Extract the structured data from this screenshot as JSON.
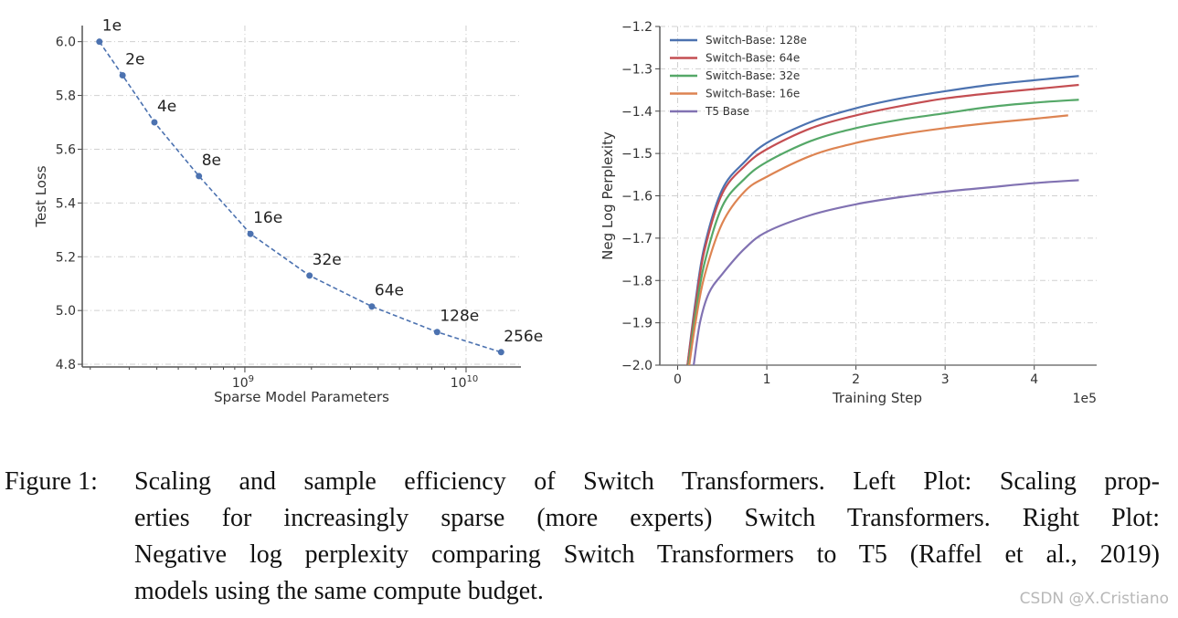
{
  "chart_data": [
    {
      "type": "line",
      "xlabel": "Sparse Model Parameters",
      "ylabel": "Test Loss",
      "xscale": "log",
      "xlim": [
        184000000.0,
        17700000000.0
      ],
      "ylim": [
        4.79,
        6.06
      ],
      "xticks": [
        {
          "value": 1000000000.0,
          "base": "10",
          "exp": "9"
        },
        {
          "value": 10000000000.0,
          "base": "10",
          "exp": "10"
        }
      ],
      "yticks": [
        4.8,
        5.0,
        5.2,
        5.4,
        5.6,
        5.8,
        6.0
      ],
      "ytick_labels": [
        "4.8",
        "5.0",
        "5.2",
        "5.4",
        "5.6",
        "5.8",
        "6.0"
      ],
      "grid": true,
      "line_style": "dashed",
      "color": "#4c72b0",
      "points": [
        {
          "label": "1e",
          "x": 220000000.0,
          "y": 6.0
        },
        {
          "label": "2e",
          "x": 280000000.0,
          "y": 5.875
        },
        {
          "label": "4e",
          "x": 390000000.0,
          "y": 5.7
        },
        {
          "label": "8e",
          "x": 620000000.0,
          "y": 5.5
        },
        {
          "label": "16e",
          "x": 1060000000.0,
          "y": 5.285
        },
        {
          "label": "32e",
          "x": 1960000000.0,
          "y": 5.13
        },
        {
          "label": "64e",
          "x": 3750000000.0,
          "y": 5.015
        },
        {
          "label": "128e",
          "x": 7400000000.0,
          "y": 4.92
        },
        {
          "label": "256e",
          "x": 14400000000.0,
          "y": 4.845
        }
      ]
    },
    {
      "type": "line",
      "xlabel": "Training Step",
      "x_multiplier": "1e5",
      "ylabel": "Neg Log Perplexity",
      "xlim": [
        -0.2,
        4.7
      ],
      "ylim": [
        -2.0,
        -1.2
      ],
      "xticks": [
        0,
        1,
        2,
        3,
        4
      ],
      "xtick_labels": [
        "0",
        "1",
        "2",
        "3",
        "4"
      ],
      "yticks": [
        -2.0,
        -1.9,
        -1.8,
        -1.7,
        -1.6,
        -1.5,
        -1.4,
        -1.3,
        -1.2
      ],
      "ytick_labels": [
        "−2.0",
        "−1.9",
        "−1.8",
        "−1.7",
        "−1.6",
        "−1.5",
        "−1.4",
        "−1.3",
        "−1.2"
      ],
      "grid": true,
      "legend_position": "top-left",
      "series": [
        {
          "name": "Switch-Base: 128e",
          "color": "#4c72b0",
          "x": [
            0.11,
            0.2,
            0.3,
            0.5,
            0.75,
            1,
            1.5,
            2,
            2.5,
            3,
            3.5,
            4,
            4.5
          ],
          "y": [
            -2.0,
            -1.85,
            -1.72,
            -1.585,
            -1.52,
            -1.475,
            -1.425,
            -1.393,
            -1.37,
            -1.353,
            -1.338,
            -1.327,
            -1.317
          ]
        },
        {
          "name": "Switch-Base: 64e",
          "color": "#c44e52",
          "x": [
            0.11,
            0.2,
            0.3,
            0.5,
            0.75,
            1,
            1.5,
            2,
            2.5,
            3,
            3.5,
            4,
            4.5
          ],
          "y": [
            -2.0,
            -1.86,
            -1.73,
            -1.595,
            -1.53,
            -1.49,
            -1.44,
            -1.41,
            -1.388,
            -1.37,
            -1.358,
            -1.348,
            -1.338
          ]
        },
        {
          "name": "Switch-Base: 32e",
          "color": "#55a868",
          "x": [
            0.12,
            0.2,
            0.3,
            0.5,
            0.75,
            1,
            1.5,
            2,
            2.5,
            3,
            3.5,
            4,
            4.5
          ],
          "y": [
            -2.0,
            -1.88,
            -1.76,
            -1.625,
            -1.56,
            -1.52,
            -1.47,
            -1.44,
            -1.42,
            -1.405,
            -1.39,
            -1.38,
            -1.373
          ]
        },
        {
          "name": "Switch-Base: 16e",
          "color": "#dd8452",
          "x": [
            0.13,
            0.2,
            0.3,
            0.5,
            0.75,
            1,
            1.5,
            2,
            2.5,
            3,
            3.5,
            4,
            4.38
          ],
          "y": [
            -2.0,
            -1.9,
            -1.79,
            -1.665,
            -1.59,
            -1.555,
            -1.505,
            -1.475,
            -1.455,
            -1.44,
            -1.428,
            -1.418,
            -1.41
          ]
        },
        {
          "name": "T5 Base",
          "color": "#8172b2",
          "x": [
            0.18,
            0.25,
            0.35,
            0.5,
            0.75,
            1,
            1.5,
            2,
            2.5,
            3,
            3.5,
            4,
            4.5
          ],
          "y": [
            -2.0,
            -1.9,
            -1.83,
            -1.785,
            -1.725,
            -1.685,
            -1.645,
            -1.62,
            -1.603,
            -1.59,
            -1.58,
            -1.57,
            -1.563
          ]
        }
      ]
    }
  ],
  "caption": {
    "figure_label": "Figure 1:",
    "lines": [
      "Scaling and sample efficiency of Switch Transformers. Left Plot: Scaling prop-",
      "erties for increasingly sparse (more experts) Switch Transformers. Right Plot:",
      "Negative log perplexity comparing Switch Transformers to T5 (Raffel et al., 2019)",
      "models using the same compute budget."
    ]
  },
  "watermark": "CSDN @X.Cristiano"
}
